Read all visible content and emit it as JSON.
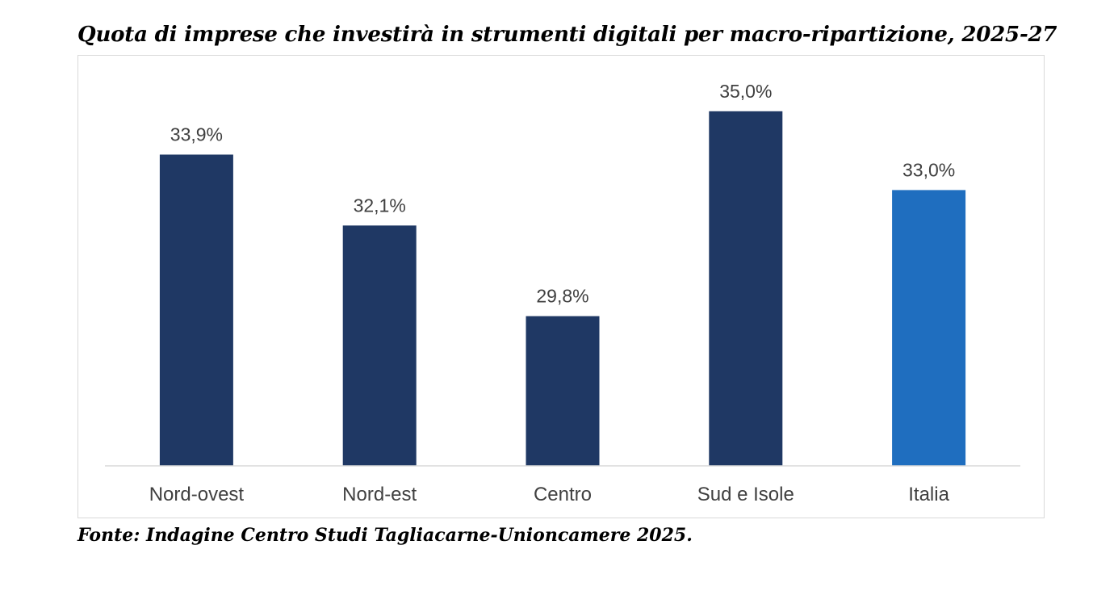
{
  "chart_data": {
    "type": "bar",
    "title": "Quota di imprese che investirà in strumenti digitali per macro-ripartizione, 2025-27",
    "categories": [
      "Nord-ovest",
      "Nord-est",
      "Centro",
      "Sud e Isole",
      "Italia"
    ],
    "values": [
      33.9,
      32.1,
      29.8,
      35.0,
      33.0
    ],
    "value_labels": [
      "33,9%",
      "32,1%",
      "29,8%",
      "35,0%",
      "33,0%"
    ],
    "xlabel": "",
    "ylabel": "",
    "ylim": [
      26,
      36
    ],
    "grid": false,
    "legend": "none",
    "colors": [
      "#1f3864",
      "#1f3864",
      "#1f3864",
      "#1f3864",
      "#1f6ebf"
    ]
  },
  "source": "Fonte: Indagine Centro Studi Tagliacarne-Unioncamere 2025."
}
